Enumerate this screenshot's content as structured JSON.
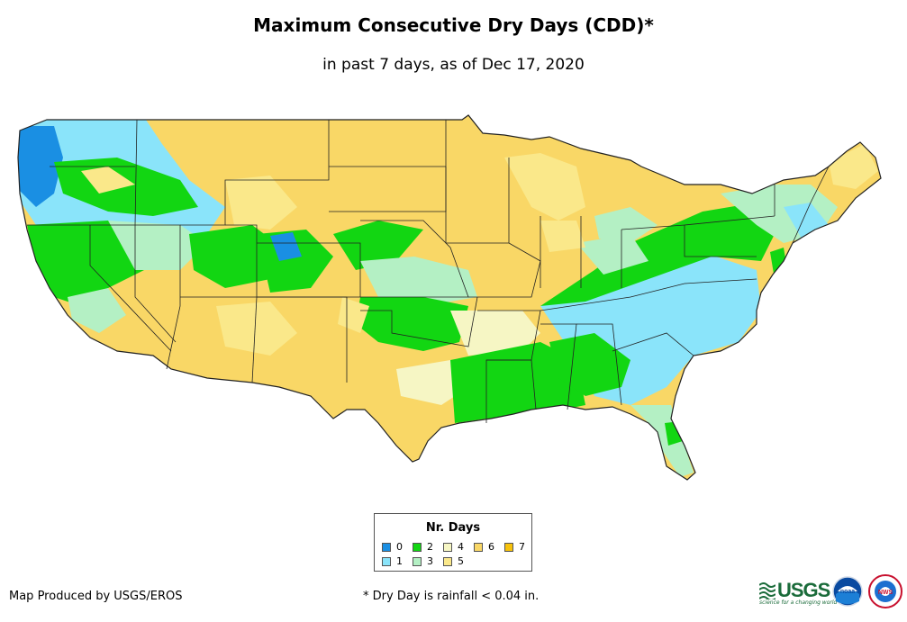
{
  "title": "Maximum Consecutive Dry Days (CDD)*",
  "subtitle": "in past 7 days, as of Dec 17, 2020",
  "legend": {
    "title": "Nr. Days",
    "items": [
      {
        "label": "0",
        "color": "#1a8fe3"
      },
      {
        "label": "1",
        "color": "#8ae4fa"
      },
      {
        "label": "2",
        "color": "#12d612"
      },
      {
        "label": "3",
        "color": "#b4f0c4"
      },
      {
        "label": "4",
        "color": "#f6f6c4"
      },
      {
        "label": "5",
        "color": "#fae88a"
      },
      {
        "label": "6",
        "color": "#f9d766"
      },
      {
        "label": "7",
        "color": "#f7c20c"
      }
    ]
  },
  "credit": "Map Produced by USGS/EROS",
  "footnote": "* Dry Day is rainfall < 0.04 in.",
  "logos": {
    "usgs": "USGS",
    "usgs_tagline": "science for a changing world",
    "noaa": "noaa",
    "nws": "NWS"
  }
}
